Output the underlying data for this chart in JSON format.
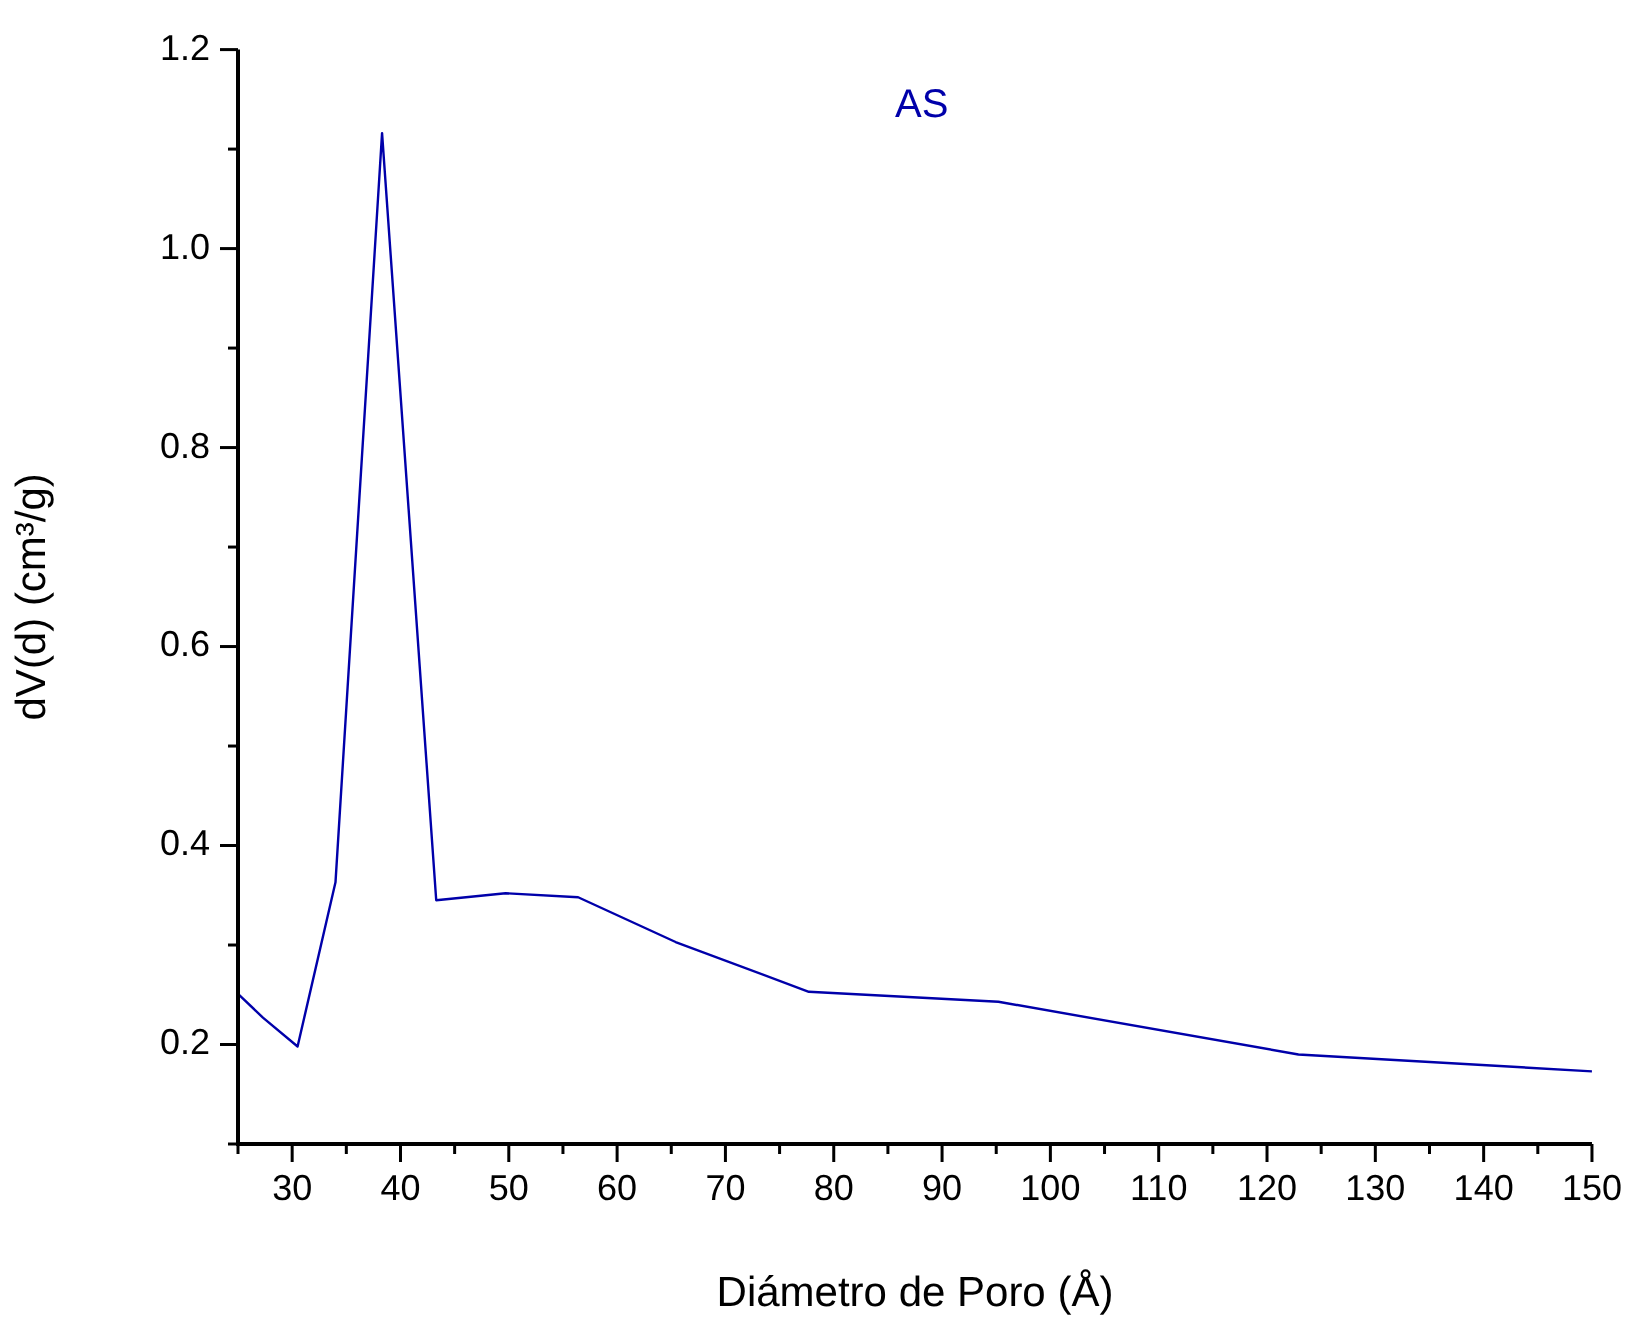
{
  "chart_data": {
    "type": "line",
    "xlabel": "Diámetro de Poro (Å)",
    "ylabel": "dV(d) (cm³/g)",
    "x": [
      25,
      27.3,
      30.5,
      34,
      38.3,
      43.3,
      49.7,
      56.4,
      65.4,
      77.7,
      95.2,
      122.9,
      150
    ],
    "series": [
      {
        "name": "AS",
        "color": "#0000aa",
        "values": [
          0.251,
          0.227,
          0.198,
          0.363,
          1.116,
          0.345,
          0.352,
          0.348,
          0.303,
          0.253,
          0.243,
          0.19,
          0.173
        ]
      }
    ],
    "xlim": [
      25,
      150
    ],
    "xticks": [
      {
        "value": 25,
        "label": null
      },
      30,
      {
        "value": 35,
        "label": null
      },
      40,
      {
        "value": 45,
        "label": null
      },
      50,
      {
        "value": 55,
        "label": null
      },
      60,
      {
        "value": 65,
        "label": null
      },
      70,
      {
        "value": 75,
        "label": null
      },
      80,
      {
        "value": 85,
        "label": null
      },
      90,
      {
        "value": 95,
        "label": null
      },
      100,
      {
        "value": 105,
        "label": null
      },
      110,
      {
        "value": 115,
        "label": null
      },
      120,
      {
        "value": 125,
        "label": null
      },
      130,
      {
        "value": 135,
        "label": null
      },
      140,
      {
        "value": 145,
        "label": null
      },
      150
    ],
    "ylim": [
      0.1,
      1.2
    ],
    "yticks": [
      {
        "value": 0.1,
        "label": null
      },
      {
        "value": 0.2,
        "label": "0.2"
      },
      {
        "value": 0.3,
        "label": null
      },
      {
        "value": 0.4,
        "label": "0.4"
      },
      {
        "value": 0.5,
        "label": null
      },
      {
        "value": 0.6,
        "label": "0.6"
      },
      {
        "value": 0.7,
        "label": null
      },
      {
        "value": 0.8,
        "label": "0.8"
      },
      {
        "value": 0.9,
        "label": null
      },
      {
        "value": 1.0,
        "label": "1.0"
      },
      {
        "value": 1.1,
        "label": null
      },
      {
        "value": 1.2,
        "label": "1.2"
      }
    ],
    "grid": false,
    "legend": false,
    "marker": "none",
    "line_style": "solid"
  }
}
